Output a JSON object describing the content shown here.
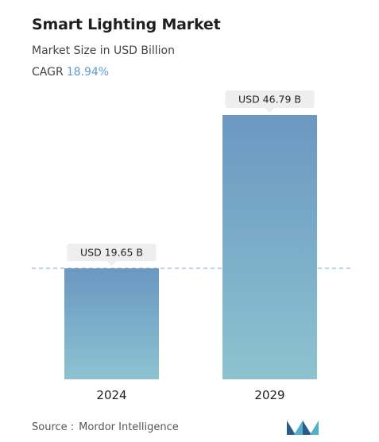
{
  "header": {
    "title": "Smart Lighting Market",
    "subtitle": "Market Size in USD Billion",
    "cagr_label": "CAGR",
    "cagr_value": "18.94%"
  },
  "footer": {
    "source_label": "Source :",
    "source_value": "Mordor Intelligence",
    "logo_icon": "mordor-intelligence-logo-icon"
  },
  "colors": {
    "bar_top": "#6b97c2",
    "bar_bottom": "#8cc3cf",
    "reference_line": "#9ab8d6",
    "label_bg": "#eeeeee",
    "cagr_accent": "#5b9bd5",
    "logo_primary": "#2a5c8a",
    "logo_secondary": "#4fb0c6"
  },
  "chart_data": {
    "type": "bar",
    "categories": [
      "2024",
      "2029"
    ],
    "values": [
      19.65,
      46.79
    ],
    "data_labels": [
      "USD 19.65 B",
      "USD 46.79 B"
    ],
    "title": "Smart Lighting Market",
    "xlabel": "",
    "ylabel": "",
    "ylim": [
      0,
      46.79
    ],
    "grid": false,
    "reference_line_at_first_value": true
  }
}
